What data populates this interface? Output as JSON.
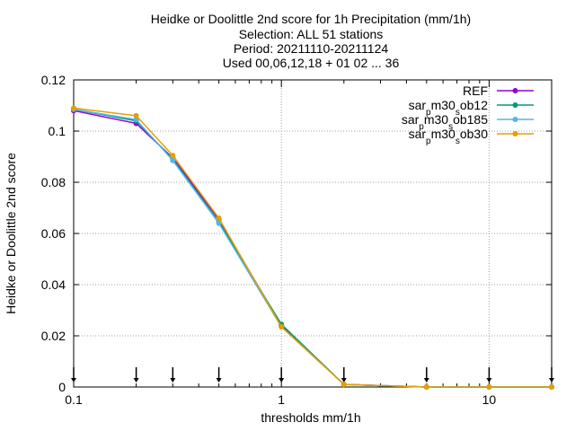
{
  "chart_data": {
    "type": "line",
    "title_lines": [
      "Heidke or Doolittle 2nd score  for 1h Precipitation (mm/1h)",
      "Selection: ALL     51 stations",
      "Period: 20211110-20211124",
      "Used 00,06,12,18 + 01 02 ... 36"
    ],
    "xlabel": "thresholds mm/1h",
    "ylabel": "Heidke or Doolittle 2nd score",
    "x_scale": "log",
    "xlim": [
      0.1,
      20
    ],
    "ylim": [
      0,
      0.12
    ],
    "x_ticks": [
      {
        "value": 0.1,
        "label": "0.1"
      },
      {
        "value": 1,
        "label": "1"
      },
      {
        "value": 10,
        "label": "10"
      }
    ],
    "y_ticks": [
      {
        "value": 0,
        "label": "0"
      },
      {
        "value": 0.02,
        "label": "0.02"
      },
      {
        "value": 0.04,
        "label": "0.04"
      },
      {
        "value": 0.06,
        "label": "0.06"
      },
      {
        "value": 0.08,
        "label": "0.08"
      },
      {
        "value": 0.1,
        "label": "0.1"
      },
      {
        "value": 0.12,
        "label": "0.12"
      }
    ],
    "grid": true,
    "legend_position": "top-right",
    "threshold_markers": [
      0.1,
      0.2,
      0.3,
      0.5,
      1,
      2,
      5,
      10,
      20
    ],
    "x": [
      0.1,
      0.2,
      0.3,
      0.5,
      1,
      2,
      5,
      10,
      20
    ],
    "series": [
      {
        "name": "REF",
        "legend_parts": [
          [
            "REF",
            false
          ]
        ],
        "color": "#9400d3",
        "values": [
          0.108,
          0.103,
          0.0895,
          0.0655,
          0.024,
          0.001,
          0.0,
          0.0,
          0.0
        ]
      },
      {
        "name": "sar_pm30_sob12",
        "legend_parts": [
          [
            "sar",
            false
          ],
          [
            "p",
            true
          ],
          [
            "m30",
            false
          ],
          [
            "s",
            true
          ],
          [
            "ob12",
            false
          ]
        ],
        "color": "#009e73",
        "values": [
          0.1085,
          0.104,
          0.089,
          0.0645,
          0.0245,
          0.001,
          0.0,
          0.0,
          0.0
        ]
      },
      {
        "name": "sar_pm30_sob185",
        "legend_parts": [
          [
            "sar",
            false
          ],
          [
            "p",
            true
          ],
          [
            "m30",
            false
          ],
          [
            "s",
            true
          ],
          [
            "ob185",
            false
          ]
        ],
        "color": "#56b4e9",
        "values": [
          0.1085,
          0.1045,
          0.0885,
          0.064,
          0.0235,
          0.001,
          0.0,
          0.0,
          0.0
        ]
      },
      {
        "name": "sar_pm30_sob30",
        "legend_parts": [
          [
            "sar",
            false
          ],
          [
            "p",
            true
          ],
          [
            "m30",
            false
          ],
          [
            "s",
            true
          ],
          [
            "ob30",
            false
          ]
        ],
        "color": "#e69f00",
        "values": [
          0.109,
          0.106,
          0.0905,
          0.066,
          0.0235,
          0.001,
          0.0,
          0.0,
          0.0
        ]
      }
    ]
  }
}
